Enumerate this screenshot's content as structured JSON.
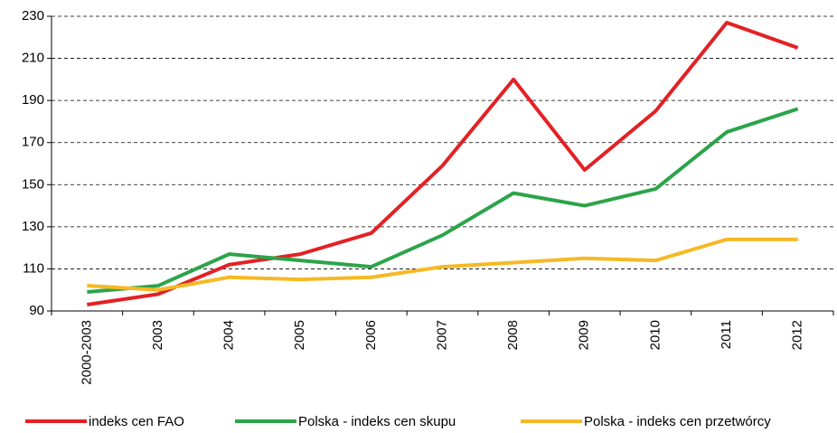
{
  "chart_data": {
    "type": "line",
    "categories": [
      "2000-2003",
      "2003",
      "2004",
      "2005",
      "2006",
      "2007",
      "2008",
      "2009",
      "2010",
      "2011",
      "2012"
    ],
    "series": [
      {
        "name": "indeks cen FAO",
        "color": "#e32124",
        "values": [
          93,
          98,
          112,
          117,
          127,
          159,
          200,
          157,
          185,
          227,
          215
        ]
      },
      {
        "name": "Polska -  indeks cen skupu",
        "color": "#2ca44a",
        "values": [
          99,
          102,
          117,
          114,
          111,
          126,
          146,
          140,
          148,
          175,
          186
        ]
      },
      {
        "name": "Polska - indeks cen przetwórcy",
        "color": "#f6b924",
        "values": [
          102,
          100,
          106,
          105,
          106,
          111,
          113,
          115,
          114,
          124,
          124
        ]
      }
    ],
    "ylim": [
      90,
      230
    ],
    "yticks": [
      90,
      110,
      130,
      150,
      170,
      190,
      210,
      230
    ],
    "grid": true,
    "legend": "bottom"
  }
}
